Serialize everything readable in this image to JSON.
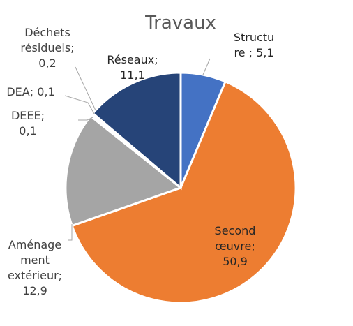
{
  "chart_data": {
    "type": "pie",
    "title": "Travaux",
    "slices": [
      {
        "name": "Structure",
        "value": 5.1,
        "color": "#4472C4",
        "label_lines": [
          "Structu",
          "re ; 5,1"
        ]
      },
      {
        "name": "Second œuvre",
        "value": 50.9,
        "color": "#ED7D31",
        "label_lines": [
          "Second",
          "œuvre;",
          "50,9"
        ]
      },
      {
        "name": "Aménagement extérieur",
        "value": 12.9,
        "color": "#A5A5A5",
        "label_lines": [
          "Aménage",
          "ment",
          "extérieur;",
          "12,9"
        ]
      },
      {
        "name": "DEEE",
        "value": 0.1,
        "color": "#FFC000",
        "label_lines": [
          "DEEE;",
          "0,1"
        ]
      },
      {
        "name": "DEA",
        "value": 0.1,
        "color": "#5B9BD5",
        "label_lines": [
          "DEA; 0,1"
        ]
      },
      {
        "name": "Déchets résiduels",
        "value": 0.2,
        "color": "#70AD47",
        "label_lines": [
          "Déchets",
          "résiduels;",
          "0,2"
        ]
      },
      {
        "name": "Réseaux",
        "value": 11.1,
        "color": "#264478",
        "label_lines": [
          "Réseaux;",
          "11,1"
        ]
      }
    ]
  }
}
